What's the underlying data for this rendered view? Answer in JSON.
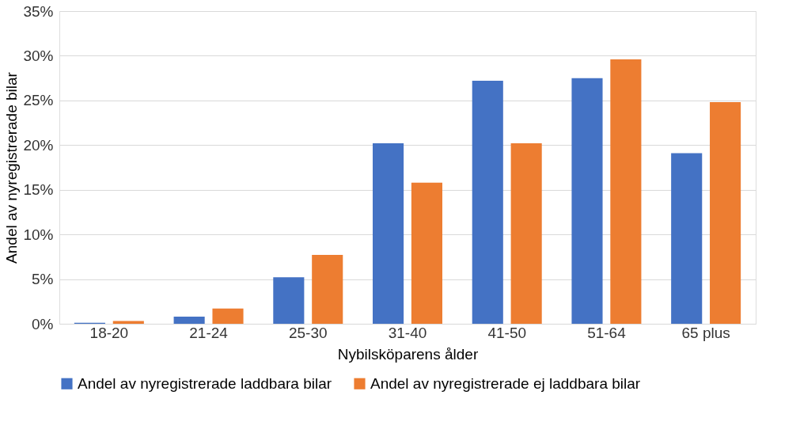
{
  "chart_data": {
    "type": "bar",
    "xlabel": "Nybilsköparens ålder",
    "ylabel": "Andel av nyregistrerade bilar",
    "categories": [
      "18-20",
      "21-24",
      "25-30",
      "31-40",
      "41-50",
      "51-64",
      "65 plus"
    ],
    "series": [
      {
        "name": "Andel av nyregistrerade laddbara bilar",
        "color": "#4472c4",
        "values": [
          0.1,
          0.8,
          5.2,
          20.2,
          27.2,
          27.5,
          19.1
        ]
      },
      {
        "name": "Andel av nyregistrerade ej laddbara bilar",
        "color": "#ed7d31",
        "values": [
          0.3,
          1.7,
          7.7,
          15.8,
          20.2,
          29.6,
          24.8
        ]
      }
    ],
    "ylim": [
      0,
      35
    ],
    "yticks": [
      {
        "value": 0,
        "label": "0%"
      },
      {
        "value": 5,
        "label": "5%"
      },
      {
        "value": 10,
        "label": "10%"
      },
      {
        "value": 15,
        "label": "15%"
      },
      {
        "value": 20,
        "label": "20%"
      },
      {
        "value": 25,
        "label": "25%"
      },
      {
        "value": 30,
        "label": "30%"
      },
      {
        "value": 35,
        "label": "35%"
      }
    ],
    "grid": "y",
    "legend": "bottom"
  }
}
